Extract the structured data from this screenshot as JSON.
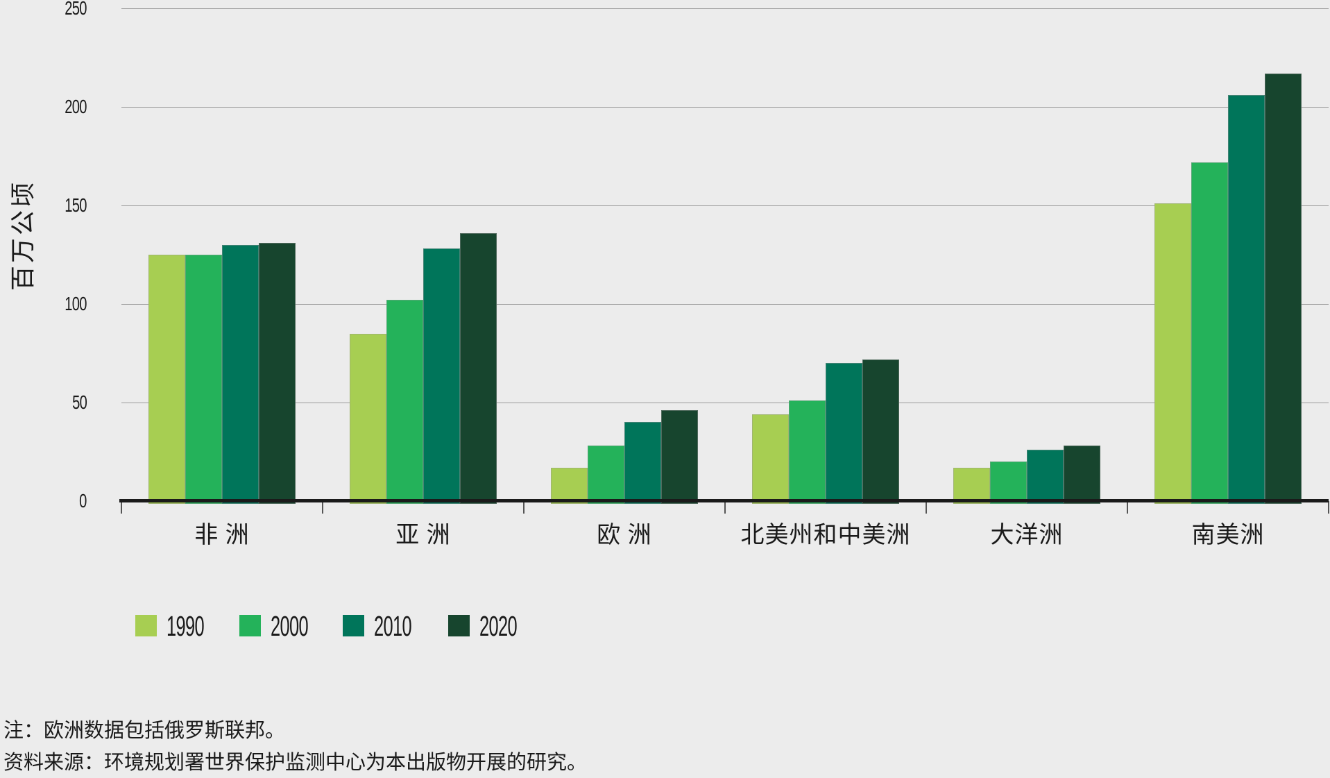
{
  "chart_data": {
    "type": "bar",
    "categories": [
      "非 洲",
      "亚 洲",
      "欧 洲",
      "北美州和中美洲",
      "大洋洲",
      "南美洲"
    ],
    "series": [
      {
        "name": "1990",
        "color": "#A7CE52",
        "values": [
          125,
          85,
          17,
          44,
          17,
          151
        ]
      },
      {
        "name": "2000",
        "color": "#24B25A",
        "values": [
          125,
          102,
          28,
          51,
          20,
          172
        ]
      },
      {
        "name": "2010",
        "color": "#00755A",
        "values": [
          130,
          128,
          40,
          70,
          26,
          206
        ]
      },
      {
        "name": "2020",
        "color": "#17452E",
        "values": [
          131,
          136,
          46,
          72,
          28,
          217
        ]
      }
    ],
    "title": "",
    "xlabel": "",
    "ylabel": "百万公顷",
    "ylim": [
      0,
      250
    ],
    "y_ticks": [
      0,
      50,
      100,
      150,
      200,
      250
    ],
    "grid": "horizontal",
    "legend_position": "bottom-left"
  },
  "notes": {
    "note": "注：欧洲数据包括俄罗斯联邦。",
    "source": "资料来源：环境规划署世界保护监测中心为本出版物开展的研究。"
  },
  "colors": {
    "background": "#ECECEC",
    "gridline": "#8C8C8C",
    "axis": "#1A1A1A",
    "text": "#1A1A1A"
  }
}
